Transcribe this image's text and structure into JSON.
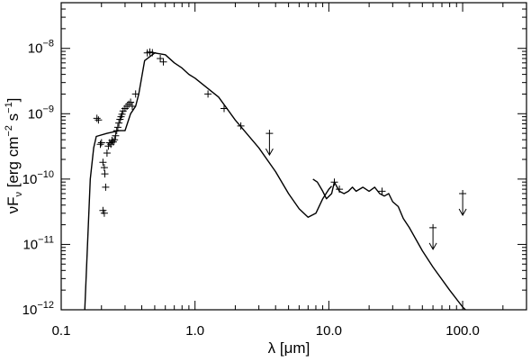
{
  "chart_data": {
    "type": "line",
    "xlabel": "λ [μm]",
    "ylabel": "νF_ν [erg cm^-2 s^-1]",
    "ylabel_parts": {
      "prefix": "νF",
      "sub": "ν",
      "units_a": " [erg cm",
      "exp_a": "−2",
      "units_b": " s",
      "exp_b": "−1",
      "close": "]"
    },
    "x_scale": "log",
    "y_scale": "log",
    "xlim": [
      0.1,
      300
    ],
    "ylim": [
      1e-12,
      5e-08
    ],
    "x_ticks": [
      {
        "value": 0.1,
        "label": "0.1"
      },
      {
        "value": 1,
        "label": "1.0"
      },
      {
        "value": 10,
        "label": "10.0"
      },
      {
        "value": 100,
        "label": "100.0"
      }
    ],
    "y_ticks": [
      {
        "value": 1e-12,
        "base": "10",
        "exp": "−12"
      },
      {
        "value": 1e-11,
        "base": "10",
        "exp": "−11"
      },
      {
        "value": 1e-10,
        "base": "10",
        "exp": "−10"
      },
      {
        "value": 1e-09,
        "base": "10",
        "exp": "−9"
      },
      {
        "value": 1e-08,
        "base": "10",
        "exp": "−8"
      }
    ],
    "series": [
      {
        "style": "model-line",
        "segments": [
          [
            [
              0.15,
              1e-12
            ],
            [
              0.165,
              1e-10
            ],
            [
              0.175,
              3e-10
            ],
            [
              0.183,
              4.5e-10
            ],
            [
              0.22,
              5e-10
            ],
            [
              0.27,
              5.5e-10
            ],
            [
              0.3,
              5.5e-10
            ],
            [
              0.33,
              1e-09
            ],
            [
              0.36,
              1.3e-09
            ],
            [
              0.38,
              2e-09
            ],
            [
              0.42,
              6.5e-09
            ],
            [
              0.5,
              8.5e-09
            ],
            [
              0.6,
              8e-09
            ],
            [
              0.7,
              6e-09
            ],
            [
              0.8,
              5e-09
            ],
            [
              0.9,
              4e-09
            ],
            [
              1.0,
              3.5e-09
            ],
            [
              1.5,
              1.8e-09
            ],
            [
              2.0,
              8e-10
            ],
            [
              3.0,
              3e-10
            ],
            [
              4.0,
              1.3e-10
            ],
            [
              5.0,
              6e-11
            ],
            [
              6.0,
              3.5e-11
            ],
            [
              7.0,
              2.6e-11
            ],
            [
              8.0,
              3e-11
            ],
            [
              9.0,
              5e-11
            ],
            [
              10.0,
              7e-11
            ],
            [
              10.5,
              7.8e-11
            ]
          ],
          [
            [
              7.6,
              1e-10
            ],
            [
              8.2,
              9e-11
            ],
            [
              9.0,
              6.5e-11
            ],
            [
              9.6,
              5e-11
            ],
            [
              10.5,
              6e-11
            ],
            [
              11.0,
              9e-11
            ],
            [
              12.0,
              6.5e-11
            ],
            [
              13.0,
              6e-11
            ],
            [
              14.0,
              6.5e-11
            ],
            [
              15.0,
              7.5e-11
            ],
            [
              16.0,
              6.5e-11
            ],
            [
              18.0,
              7.5e-11
            ],
            [
              20.0,
              6.5e-11
            ],
            [
              22.0,
              7.5e-11
            ],
            [
              24.0,
              6e-11
            ],
            [
              26.0,
              5.5e-11
            ],
            [
              28.0,
              6e-11
            ],
            [
              30.0,
              4.5e-11
            ],
            [
              33.0,
              3.8e-11
            ],
            [
              36.0,
              2.5e-11
            ],
            [
              40.0,
              1.8e-11
            ],
            [
              50.0,
              8e-12
            ],
            [
              60.0,
              4.5e-12
            ],
            [
              80.0,
              2e-12
            ],
            [
              100.0,
              1.1e-12
            ],
            [
              105.0,
              1e-12
            ]
          ]
        ]
      },
      {
        "style": "photometry-plus",
        "points": [
          [
            0.185,
            8.5e-10
          ],
          [
            0.19,
            8e-10
          ],
          [
            0.196,
            3.4e-10
          ],
          [
            0.2,
            3.6e-10
          ],
          [
            0.205,
            1.8e-10
          ],
          [
            0.21,
            1.5e-10
          ],
          [
            0.212,
            1.2e-10
          ],
          [
            0.215,
            7.5e-11
          ],
          [
            0.205,
            3.3e-11
          ],
          [
            0.21,
            3e-11
          ],
          [
            0.22,
            2.5e-10
          ],
          [
            0.225,
            3.2e-10
          ],
          [
            0.23,
            3.6e-10
          ],
          [
            0.235,
            3.4e-10
          ],
          [
            0.24,
            3.9e-10
          ],
          [
            0.245,
            3.7e-10
          ],
          [
            0.25,
            4e-10
          ],
          [
            0.255,
            4.6e-10
          ],
          [
            0.26,
            5.5e-10
          ],
          [
            0.265,
            6.2e-10
          ],
          [
            0.27,
            7.2e-10
          ],
          [
            0.275,
            8.2e-10
          ],
          [
            0.28,
            9e-10
          ],
          [
            0.285,
            9.8e-10
          ],
          [
            0.29,
            1.1e-09
          ],
          [
            0.3,
            1.2e-09
          ],
          [
            0.31,
            1.3e-09
          ],
          [
            0.32,
            1.4e-09
          ],
          [
            0.33,
            1.5e-09
          ],
          [
            0.34,
            1.3e-09
          ],
          [
            0.36,
            2e-09
          ],
          [
            0.44,
            8.5e-09
          ],
          [
            0.46,
            8.8e-09
          ],
          [
            0.48,
            8.6e-09
          ],
          [
            0.55,
            7e-09
          ],
          [
            0.58,
            6.2e-09
          ],
          [
            1.25,
            2e-09
          ],
          [
            1.65,
            1.2e-09
          ],
          [
            2.2,
            6.5e-10
          ],
          [
            11.0,
            9e-11
          ],
          [
            12.0,
            7e-11
          ],
          [
            25.0,
            6.5e-11
          ]
        ]
      },
      {
        "style": "upper-limit",
        "points": [
          [
            3.6,
            5e-10
          ],
          [
            60.0,
            1.8e-11
          ],
          [
            100.0,
            6e-11
          ]
        ]
      }
    ]
  }
}
